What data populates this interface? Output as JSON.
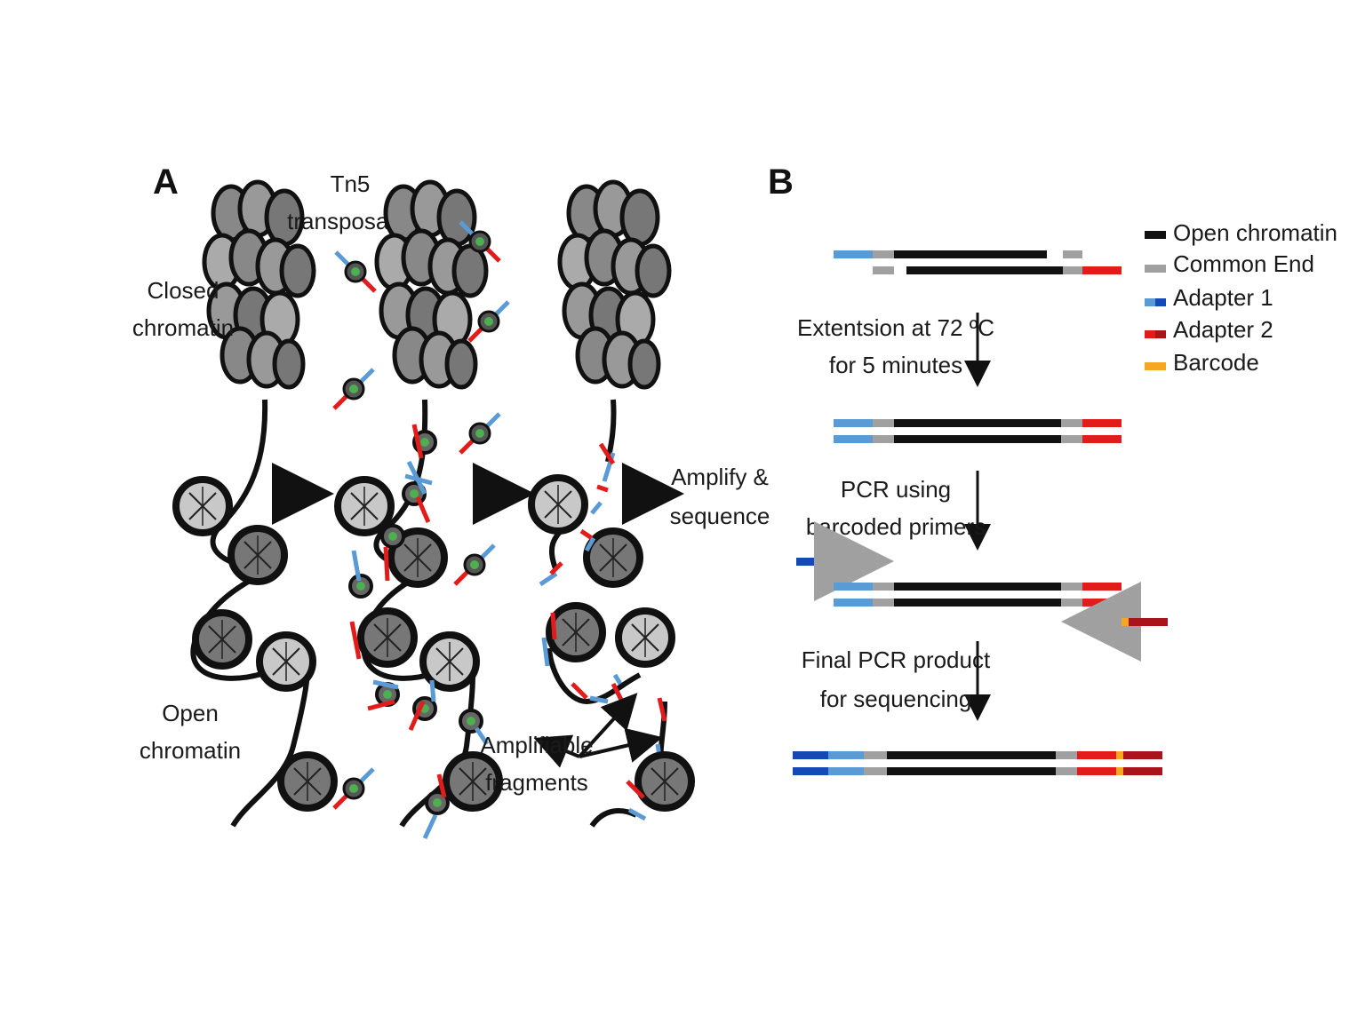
{
  "panel_a": {
    "letter": "A",
    "labels": {
      "tn5_line1": "Tn5",
      "tn5_line2": "transposase",
      "closed_line1": "Closed",
      "closed_line2": "chromatin",
      "open_line1": "Open",
      "open_line2": "chromatin",
      "amplify_line1": "Amplify &",
      "amplify_line2": "sequence",
      "amplifiable_line1": "Amplifiable",
      "amplifiable_line2": "fragments"
    }
  },
  "panel_b": {
    "letter": "B",
    "steps": [
      {
        "line1": "Extentsion at 72 ºC",
        "line2": "for 5 minutes"
      },
      {
        "line1": "PCR using",
        "line2": "barcoded primers"
      },
      {
        "line1": "Final PCR product",
        "line2": "for sequencing"
      }
    ],
    "legend": [
      {
        "label": "Open chromatin",
        "color": "#111111"
      },
      {
        "label": "Common End",
        "color": "#a0a0a0"
      },
      {
        "label": "Adapter 1",
        "color": "#1f5fc0"
      },
      {
        "label": "Adapter 2",
        "color": "#e21b1b"
      },
      {
        "label": "Barcode",
        "color": "#f5a623"
      }
    ]
  },
  "colors": {
    "dna": "#111111",
    "common_end": "#a0a0a0",
    "adapter1_light": "#5b9bd5",
    "adapter1_dark": "#1549b8",
    "adapter2": "#e21b1b",
    "adapter2_dark": "#a8141a",
    "barcode": "#f5a623",
    "tn5_core": "#4caf50"
  }
}
